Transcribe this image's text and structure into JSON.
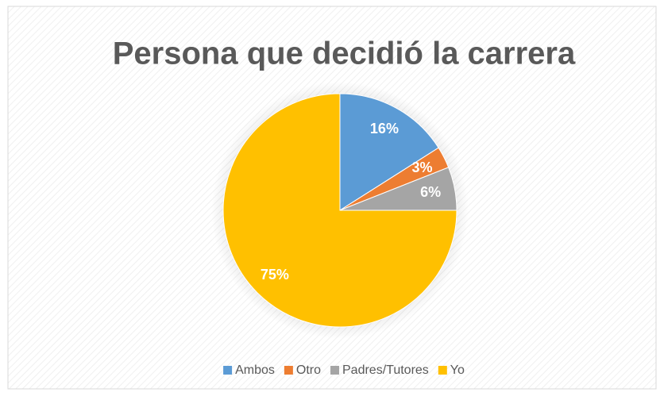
{
  "chart_data": {
    "type": "pie",
    "title": "Persona que decidió la carrera",
    "categories": [
      "Ambos",
      "Otro",
      "Padres/Tutores",
      "Yo"
    ],
    "values": [
      16,
      3,
      6,
      75
    ],
    "value_labels": [
      "16%",
      "3%",
      "6%",
      "75%"
    ],
    "colors": [
      "#5b9bd5",
      "#ed7d31",
      "#a5a5a5",
      "#ffc000"
    ],
    "legend": "bottom"
  }
}
